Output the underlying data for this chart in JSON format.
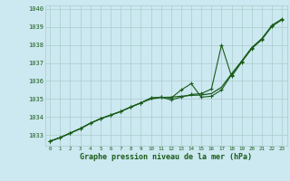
{
  "xlabel": "Graphe pression niveau de la mer (hPa)",
  "x": [
    0,
    1,
    2,
    3,
    4,
    5,
    6,
    7,
    8,
    9,
    10,
    11,
    12,
    13,
    14,
    15,
    16,
    17,
    18,
    19,
    20,
    21,
    22,
    23
  ],
  "y_smooth": [
    1032.65,
    1032.85,
    1033.1,
    1033.35,
    1033.65,
    1033.9,
    1034.1,
    1034.3,
    1034.55,
    1034.78,
    1035.0,
    1035.08,
    1035.1,
    1035.15,
    1035.2,
    1035.22,
    1035.3,
    1035.65,
    1036.4,
    1037.1,
    1037.85,
    1038.35,
    1039.05,
    1039.42
  ],
  "y_line1": [
    1032.65,
    1032.85,
    1033.1,
    1033.35,
    1033.65,
    1033.9,
    1034.1,
    1034.3,
    1034.55,
    1034.78,
    1035.05,
    1035.1,
    1035.05,
    1035.5,
    1035.85,
    1035.1,
    1035.15,
    1035.5,
    1036.35,
    1037.1,
    1037.85,
    1038.35,
    1039.1,
    1039.45
  ],
  "y_line2": [
    1032.65,
    1032.85,
    1033.1,
    1033.35,
    1033.65,
    1033.9,
    1034.1,
    1034.3,
    1034.55,
    1034.78,
    1035.05,
    1035.1,
    1034.95,
    1035.1,
    1035.25,
    1035.3,
    1035.55,
    1038.0,
    1036.25,
    1037.05,
    1037.8,
    1038.3,
    1039.05,
    1039.42
  ],
  "ylim_min": 1032.4,
  "ylim_max": 1040.2,
  "xlim_min": -0.5,
  "xlim_max": 23.5,
  "bg_color": "#cce8f0",
  "grid_color": "#aacccc",
  "line_color": "#1a5c1a",
  "label_color": "#1a5c1a",
  "yticks": [
    1033,
    1034,
    1035,
    1036,
    1037,
    1038,
    1039,
    1040
  ],
  "xticks": [
    0,
    1,
    2,
    3,
    4,
    5,
    6,
    7,
    8,
    9,
    10,
    11,
    12,
    13,
    14,
    15,
    16,
    17,
    18,
    19,
    20,
    21,
    22,
    23
  ]
}
